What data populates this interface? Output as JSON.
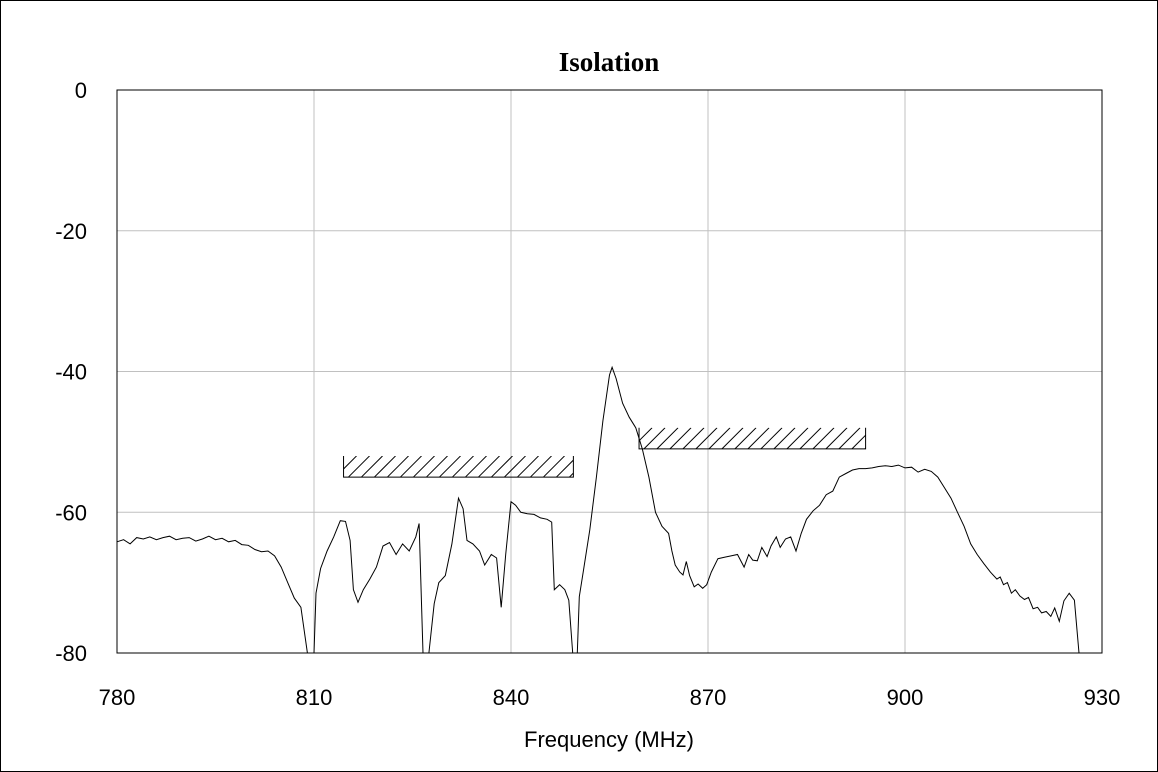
{
  "chart_data": {
    "type": "line",
    "title": "Isolation",
    "xlabel": "Frequency (MHz)",
    "ylabel": "",
    "xlim": [
      780,
      930
    ],
    "ylim": [
      -80,
      0
    ],
    "xticks": [
      780,
      810,
      840,
      870,
      900,
      930
    ],
    "yticks": [
      0,
      -20,
      -40,
      -60,
      -80
    ],
    "grid": true,
    "series": [
      {
        "values": [
          [
            780,
            -64.2
          ],
          [
            781,
            -63.9
          ],
          [
            782,
            -64.5
          ],
          [
            783,
            -63.6
          ],
          [
            784,
            -63.8
          ],
          [
            785,
            -63.5
          ],
          [
            786,
            -63.9
          ],
          [
            787,
            -63.6
          ],
          [
            788,
            -63.4
          ],
          [
            789,
            -63.9
          ],
          [
            790,
            -63.7
          ],
          [
            791,
            -63.6
          ],
          [
            792,
            -64.1
          ],
          [
            793,
            -63.8
          ],
          [
            794,
            -63.4
          ],
          [
            795,
            -63.9
          ],
          [
            796,
            -63.7
          ],
          [
            797,
            -64.2
          ],
          [
            798,
            -64.0
          ],
          [
            799,
            -64.6
          ],
          [
            800,
            -64.7
          ],
          [
            801,
            -65.3
          ],
          [
            802,
            -65.6
          ],
          [
            803,
            -65.5
          ],
          [
            804,
            -66.2
          ],
          [
            805,
            -67.8
          ],
          [
            806,
            -70.0
          ],
          [
            807,
            -72.2
          ],
          [
            808,
            -73.5
          ],
          [
            809,
            -80.0
          ],
          [
            810,
            -80.0
          ],
          [
            810.3,
            -71.5
          ],
          [
            811,
            -68.0
          ],
          [
            812,
            -65.5
          ],
          [
            813,
            -63.5
          ],
          [
            814,
            -61.2
          ],
          [
            814.8,
            -61.3
          ],
          [
            815.5,
            -64.0
          ],
          [
            816,
            -71.0
          ],
          [
            816.7,
            -72.8
          ],
          [
            817.5,
            -71.0
          ],
          [
            818.5,
            -69.5
          ],
          [
            819.5,
            -67.8
          ],
          [
            820.5,
            -64.8
          ],
          [
            821.5,
            -64.3
          ],
          [
            822.5,
            -66.0
          ],
          [
            823.5,
            -64.5
          ],
          [
            824.5,
            -65.5
          ],
          [
            825.5,
            -63.5
          ],
          [
            826,
            -61.6
          ],
          [
            826.6,
            -80.0
          ],
          [
            827.5,
            -80.0
          ],
          [
            828.3,
            -73.0
          ],
          [
            829,
            -70.0
          ],
          [
            830,
            -69.0
          ],
          [
            831,
            -64.5
          ],
          [
            832,
            -58.0
          ],
          [
            832.7,
            -59.5
          ],
          [
            833.3,
            -64.0
          ],
          [
            834.2,
            -64.5
          ],
          [
            835.2,
            -65.5
          ],
          [
            836,
            -67.5
          ],
          [
            837,
            -66.0
          ],
          [
            837.8,
            -66.5
          ],
          [
            838.5,
            -73.5
          ],
          [
            839.2,
            -66.0
          ],
          [
            840,
            -58.5
          ],
          [
            840.7,
            -59.0
          ],
          [
            841.5,
            -60.0
          ],
          [
            842.5,
            -60.2
          ],
          [
            843.5,
            -60.3
          ],
          [
            844.5,
            -60.8
          ],
          [
            845.5,
            -61.0
          ],
          [
            846.2,
            -61.4
          ],
          [
            846.6,
            -71.0
          ],
          [
            847.4,
            -70.3
          ],
          [
            848.2,
            -71.0
          ],
          [
            848.8,
            -72.5
          ],
          [
            849.4,
            -80.0
          ],
          [
            850.1,
            -80.0
          ],
          [
            850.4,
            -72.0
          ],
          [
            851,
            -68.5
          ],
          [
            852,
            -62.5
          ],
          [
            853,
            -55.0
          ],
          [
            854,
            -47.0
          ],
          [
            855,
            -40.5
          ],
          [
            855.4,
            -39.4
          ],
          [
            856,
            -41.0
          ],
          [
            857,
            -44.5
          ],
          [
            858,
            -46.5
          ],
          [
            859,
            -48.0
          ],
          [
            860,
            -51.0
          ],
          [
            861,
            -55.0
          ],
          [
            862,
            -60.0
          ],
          [
            863,
            -62.0
          ],
          [
            864,
            -63.0
          ],
          [
            864.5,
            -65.5
          ],
          [
            865,
            -67.5
          ],
          [
            865.7,
            -68.5
          ],
          [
            866.2,
            -68.9
          ],
          [
            866.7,
            -67.0
          ],
          [
            867.2,
            -69.0
          ],
          [
            867.9,
            -70.6
          ],
          [
            868.5,
            -70.2
          ],
          [
            869.2,
            -70.8
          ],
          [
            869.8,
            -70.3
          ],
          [
            870.5,
            -68.5
          ],
          [
            871.5,
            -66.6
          ],
          [
            872.5,
            -66.4
          ],
          [
            873.5,
            -66.2
          ],
          [
            874.5,
            -66.0
          ],
          [
            875.5,
            -67.8
          ],
          [
            876.2,
            -66.0
          ],
          [
            876.8,
            -66.8
          ],
          [
            877.5,
            -66.9
          ],
          [
            878.2,
            -65.0
          ],
          [
            879,
            -66.3
          ],
          [
            879.6,
            -64.8
          ],
          [
            880.4,
            -63.5
          ],
          [
            881,
            -65.0
          ],
          [
            881.8,
            -63.8
          ],
          [
            882.6,
            -63.5
          ],
          [
            883.4,
            -65.5
          ],
          [
            884.2,
            -63.0
          ],
          [
            885,
            -61.0
          ],
          [
            886,
            -59.8
          ],
          [
            887,
            -59.0
          ],
          [
            888,
            -57.5
          ],
          [
            889,
            -57.0
          ],
          [
            890,
            -55.0
          ],
          [
            891,
            -54.5
          ],
          [
            892,
            -54.0
          ],
          [
            893,
            -53.8
          ],
          [
            894,
            -53.8
          ],
          [
            895,
            -53.7
          ],
          [
            896,
            -53.5
          ],
          [
            897,
            -53.4
          ],
          [
            898,
            -53.5
          ],
          [
            899,
            -53.3
          ],
          [
            900,
            -53.7
          ],
          [
            901,
            -53.6
          ],
          [
            902,
            -54.3
          ],
          [
            903,
            -53.9
          ],
          [
            904,
            -54.2
          ],
          [
            905,
            -55.0
          ],
          [
            906,
            -56.5
          ],
          [
            907,
            -58.0
          ],
          [
            908,
            -60.0
          ],
          [
            909,
            -62.0
          ],
          [
            910,
            -64.5
          ],
          [
            911,
            -66.0
          ],
          [
            912,
            -67.3
          ],
          [
            913,
            -68.5
          ],
          [
            914,
            -69.5
          ],
          [
            914.5,
            -69.2
          ],
          [
            915,
            -70.3
          ],
          [
            915.6,
            -70.0
          ],
          [
            916.2,
            -71.5
          ],
          [
            916.8,
            -71.0
          ],
          [
            917.5,
            -71.9
          ],
          [
            918.2,
            -72.4
          ],
          [
            918.8,
            -72.1
          ],
          [
            919.5,
            -73.7
          ],
          [
            920.2,
            -73.5
          ],
          [
            920.8,
            -74.3
          ],
          [
            921.5,
            -74.1
          ],
          [
            922.2,
            -74.8
          ],
          [
            922.8,
            -73.6
          ],
          [
            923.5,
            -75.5
          ],
          [
            924.2,
            -72.6
          ],
          [
            925,
            -71.5
          ],
          [
            925.8,
            -72.5
          ],
          [
            926.5,
            -80.0
          ],
          [
            927.5,
            -80.0
          ]
        ]
      }
    ],
    "bands": [
      {
        "x_start": 814.5,
        "x_end": 849.5,
        "top": -52,
        "bottom": -55
      },
      {
        "x_start": 859.5,
        "x_end": 894.0,
        "top": -48,
        "bottom": -51
      }
    ]
  }
}
